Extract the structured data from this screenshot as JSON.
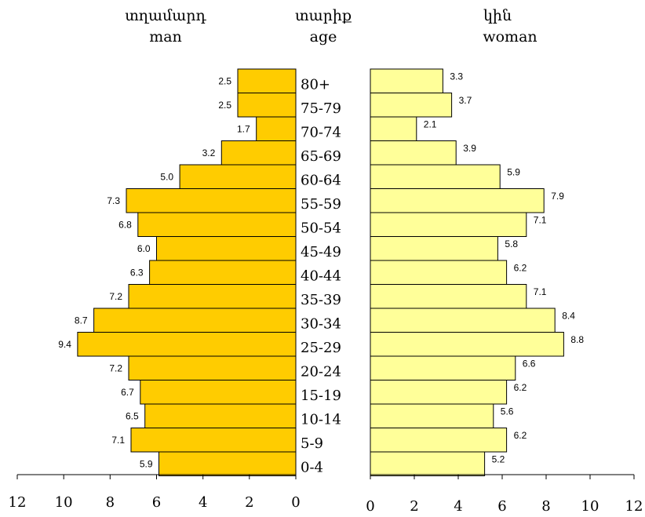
{
  "chart_data": {
    "type": "bar",
    "categories": [
      "80+",
      "75-79",
      "70-74",
      "65-69",
      "60-64",
      "55-59",
      "50-54",
      "45-49",
      "40-44",
      "35-39",
      "30-34",
      "25-29",
      "20-24",
      "15-19",
      "10-14",
      "5-9",
      "0-4"
    ],
    "series": [
      {
        "name": "man",
        "values": [
          2.5,
          2.5,
          1.7,
          3.2,
          5.0,
          7.3,
          6.8,
          6.0,
          6.3,
          7.2,
          8.7,
          9.4,
          7.2,
          6.7,
          6.5,
          7.1,
          5.9
        ]
      },
      {
        "name": "woman",
        "values": [
          3.3,
          3.7,
          2.1,
          3.9,
          5.9,
          7.9,
          7.1,
          5.8,
          6.2,
          7.1,
          8.4,
          8.8,
          6.6,
          6.2,
          5.6,
          6.2,
          5.2
        ]
      }
    ],
    "data_labels": {
      "man": [
        "2.5",
        "2.5",
        "1.7",
        "3.2",
        "5.0",
        "7.3",
        "6.8",
        "6.0",
        "6.3",
        "7.2",
        "8.7",
        "9.4",
        "7.2",
        "6.7",
        "6.5",
        "7.1",
        "5.9"
      ],
      "woman": [
        "3.3",
        "3.7",
        "2.1",
        "3.9",
        "5.9",
        "7.9",
        "7.1",
        "5.8",
        "6.2",
        "7.1",
        "8.4",
        "8.8",
        "6.6",
        "6.2",
        "5.6",
        "6.2",
        "5.2"
      ]
    },
    "headers": {
      "man_armenian": "տղամարդ",
      "man": "man",
      "age_armenian": "տարիք",
      "age": "age",
      "woman_armenian": "կին",
      "woman": "woman"
    },
    "xlim": [
      0,
      12
    ],
    "x_ticks": [
      "0",
      "2",
      "4",
      "6",
      "8",
      "10",
      "12"
    ],
    "colors": {
      "man": "#ffcc00",
      "woman": "#ffff99",
      "stroke": "#000000"
    },
    "grid": false
  }
}
